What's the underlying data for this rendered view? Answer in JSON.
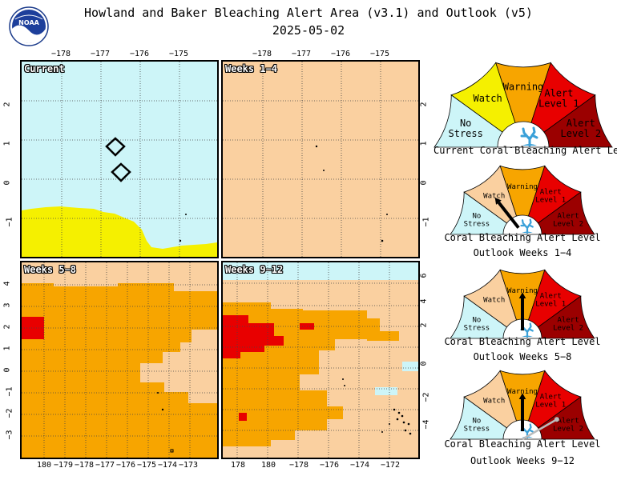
{
  "title_line1": "Howland and Baker Bleaching Alert Area (v3.1) and Outlook (v5)",
  "title_line2": "2025-05-02",
  "logo_text": "NOAA",
  "colors": {
    "no_stress": "#cdf5f8",
    "watch": "#fad0a0",
    "watch_gauge": "#f5f000",
    "warning": "#f7a500",
    "alert1": "#e80000",
    "alert2": "#9b0000",
    "yellow": "#f5f000"
  },
  "panels": {
    "current": {
      "label": "Current",
      "top_ticks": [
        "−178",
        "−177",
        "−176",
        "−175"
      ],
      "left_ticks": [
        "2",
        "1",
        "0",
        "−1"
      ]
    },
    "weeks_1_4": {
      "label": "Weeks 1−4",
      "top_ticks": [
        "−178",
        "−177",
        "−176",
        "−175"
      ],
      "right_ticks": [
        "2",
        "1",
        "0",
        "−1"
      ]
    },
    "weeks_5_8": {
      "label": "Weeks 5−8",
      "left_ticks": [
        "4",
        "3",
        "2",
        "1",
        "0",
        "−1",
        "−2",
        "−3"
      ],
      "bottom_ticks": [
        "180",
        "−179",
        "−178",
        "−177",
        "−176",
        "−175",
        "−174",
        "−173"
      ]
    },
    "weeks_9_12": {
      "label": "Weeks 9−12",
      "right_ticks": [
        "6",
        "4",
        "2",
        "0",
        "−2",
        "−4"
      ],
      "bottom_ticks": [
        "178",
        "180",
        "−178",
        "−176",
        "−174",
        "−172"
      ]
    }
  },
  "gauge_labels": {
    "no_stress": [
      "No",
      "Stress"
    ],
    "watch": "Watch",
    "warning": "Warning",
    "alert1": [
      "Alert",
      "Level 1"
    ],
    "alert2": [
      "Alert",
      "Level 2"
    ]
  },
  "gauges": [
    {
      "caption1": "Current Coral Bleaching Alert Level",
      "caption2": "",
      "level": "no_stress",
      "needle_deg": 200
    },
    {
      "caption1": "Coral Bleaching Alert Level",
      "caption2": "Outlook Weeks 1−4",
      "level": "watch",
      "needle_deg": 128
    },
    {
      "caption1": "Coral Bleaching Alert Level",
      "caption2": "Outlook Weeks 5−8",
      "level": "warning",
      "needle_deg": 90
    },
    {
      "caption1": "Coral Bleaching Alert Level",
      "caption2": "Outlook Weeks 9−12",
      "level": "warning",
      "needle_deg": 90,
      "secondary_needle_deg": 30
    }
  ]
}
